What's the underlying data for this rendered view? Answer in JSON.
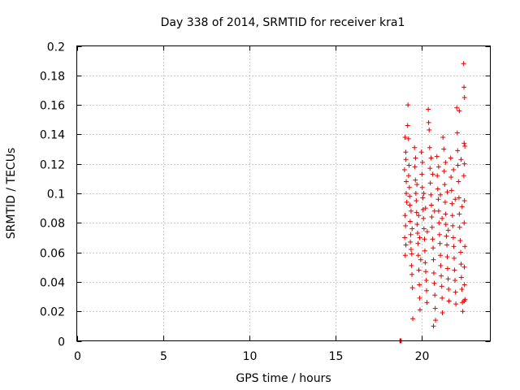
{
  "chart_data": {
    "type": "scatter",
    "title": "Day 338 of 2014, SRMTID for receiver kra1",
    "xlabel": "GPS time / hours",
    "ylabel": "SRMTID / TECUs",
    "xlim": [
      0,
      24
    ],
    "ylim": [
      0,
      0.2
    ],
    "x_ticks": [
      0,
      5,
      10,
      15,
      20
    ],
    "y_ticks": [
      0,
      0.02,
      0.04,
      0.06,
      0.08,
      0.1,
      0.12,
      0.14,
      0.16,
      0.18,
      0.2
    ],
    "grid": true,
    "marker": "plus",
    "color": "#e00000",
    "series": [
      {
        "name": "SRMTID",
        "points": [
          [
            18.75,
            0.0
          ],
          [
            18.78,
            0.0
          ],
          [
            18.8,
            0.0
          ],
          [
            18.83,
            0.0
          ],
          [
            19.05,
            0.138
          ],
          [
            19.1,
            0.123
          ],
          [
            19.12,
            0.108
          ],
          [
            19.15,
            0.094
          ],
          [
            19.05,
            0.085
          ],
          [
            19.08,
            0.078
          ],
          [
            19.03,
            0.07
          ],
          [
            19.1,
            0.065
          ],
          [
            19.06,
            0.058
          ],
          [
            19.12,
            0.1
          ],
          [
            19.02,
            0.116
          ],
          [
            19.09,
            0.128
          ],
          [
            19.2,
            0.146
          ],
          [
            19.22,
            0.16
          ],
          [
            19.25,
            0.137
          ],
          [
            19.28,
            0.119
          ],
          [
            19.3,
            0.104
          ],
          [
            19.33,
            0.092
          ],
          [
            19.35,
            0.081
          ],
          [
            19.38,
            0.072
          ],
          [
            19.4,
            0.062
          ],
          [
            19.42,
            0.051
          ],
          [
            19.45,
            0.045
          ],
          [
            19.48,
            0.036
          ],
          [
            19.5,
            0.015
          ],
          [
            19.26,
            0.112
          ],
          [
            19.32,
            0.098
          ],
          [
            19.4,
            0.088
          ],
          [
            19.46,
            0.076
          ],
          [
            19.36,
            0.067
          ],
          [
            19.44,
            0.059
          ],
          [
            19.6,
            0.131
          ],
          [
            19.62,
            0.118
          ],
          [
            19.65,
            0.109
          ],
          [
            19.68,
            0.1
          ],
          [
            19.7,
            0.095
          ],
          [
            19.72,
            0.087
          ],
          [
            19.75,
            0.079
          ],
          [
            19.78,
            0.073
          ],
          [
            19.8,
            0.066
          ],
          [
            19.82,
            0.058
          ],
          [
            19.85,
            0.048
          ],
          [
            19.88,
            0.038
          ],
          [
            19.9,
            0.029
          ],
          [
            19.92,
            0.021
          ],
          [
            19.66,
            0.124
          ],
          [
            19.74,
            0.106
          ],
          [
            19.84,
            0.085
          ],
          [
            19.9,
            0.07
          ],
          [
            19.96,
            0.055
          ],
          [
            20.0,
            0.128
          ],
          [
            20.03,
            0.113
          ],
          [
            20.05,
            0.104
          ],
          [
            20.08,
            0.097
          ],
          [
            20.1,
            0.089
          ],
          [
            20.12,
            0.083
          ],
          [
            20.15,
            0.076
          ],
          [
            20.18,
            0.069
          ],
          [
            20.2,
            0.061
          ],
          [
            20.22,
            0.053
          ],
          [
            20.25,
            0.047
          ],
          [
            20.28,
            0.041
          ],
          [
            20.3,
            0.034
          ],
          [
            20.32,
            0.026
          ],
          [
            20.06,
            0.121
          ],
          [
            20.14,
            0.1
          ],
          [
            20.24,
            0.09
          ],
          [
            20.34,
            0.074
          ],
          [
            20.4,
            0.157
          ],
          [
            20.42,
            0.148
          ],
          [
            20.45,
            0.143
          ],
          [
            20.48,
            0.131
          ],
          [
            20.5,
            0.117
          ],
          [
            20.52,
            0.107
          ],
          [
            20.55,
            0.099
          ],
          [
            20.58,
            0.092
          ],
          [
            20.6,
            0.084
          ],
          [
            20.62,
            0.077
          ],
          [
            20.65,
            0.069
          ],
          [
            20.68,
            0.063
          ],
          [
            20.7,
            0.055
          ],
          [
            20.72,
            0.046
          ],
          [
            20.75,
            0.039
          ],
          [
            20.78,
            0.031
          ],
          [
            20.8,
            0.022
          ],
          [
            20.82,
            0.014
          ],
          [
            20.7,
            0.01
          ],
          [
            20.56,
            0.124
          ],
          [
            20.66,
            0.113
          ],
          [
            20.76,
            0.088
          ],
          [
            20.9,
            0.125
          ],
          [
            20.92,
            0.112
          ],
          [
            20.95,
            0.103
          ],
          [
            20.98,
            0.096
          ],
          [
            21.0,
            0.088
          ],
          [
            21.02,
            0.08
          ],
          [
            21.05,
            0.072
          ],
          [
            21.08,
            0.066
          ],
          [
            21.1,
            0.058
          ],
          [
            21.12,
            0.051
          ],
          [
            21.15,
            0.044
          ],
          [
            21.18,
            0.037
          ],
          [
            21.2,
            0.029
          ],
          [
            21.22,
            0.019
          ],
          [
            21.25,
            0.138
          ],
          [
            21.0,
            0.118
          ],
          [
            21.1,
            0.099
          ],
          [
            21.2,
            0.083
          ],
          [
            21.3,
            0.13
          ],
          [
            21.32,
            0.115
          ],
          [
            21.35,
            0.106
          ],
          [
            21.38,
            0.094
          ],
          [
            21.4,
            0.086
          ],
          [
            21.42,
            0.079
          ],
          [
            21.45,
            0.071
          ],
          [
            21.48,
            0.065
          ],
          [
            21.5,
            0.057
          ],
          [
            21.52,
            0.049
          ],
          [
            21.55,
            0.042
          ],
          [
            21.58,
            0.035
          ],
          [
            21.6,
            0.027
          ],
          [
            21.4,
            0.121
          ],
          [
            21.5,
            0.101
          ],
          [
            21.56,
            0.075
          ],
          [
            21.7,
            0.124
          ],
          [
            21.72,
            0.111
          ],
          [
            21.75,
            0.102
          ],
          [
            21.78,
            0.093
          ],
          [
            21.8,
            0.085
          ],
          [
            21.82,
            0.078
          ],
          [
            21.85,
            0.07
          ],
          [
            21.88,
            0.064
          ],
          [
            21.9,
            0.056
          ],
          [
            21.92,
            0.048
          ],
          [
            21.95,
            0.041
          ],
          [
            21.98,
            0.033
          ],
          [
            22.0,
            0.025
          ],
          [
            21.86,
            0.116
          ],
          [
            21.96,
            0.096
          ],
          [
            22.05,
            0.158
          ],
          [
            22.08,
            0.141
          ],
          [
            22.1,
            0.129
          ],
          [
            22.12,
            0.119
          ],
          [
            22.15,
            0.108
          ],
          [
            22.18,
            0.097
          ],
          [
            22.2,
            0.086
          ],
          [
            22.22,
            0.077
          ],
          [
            22.25,
            0.068
          ],
          [
            22.28,
            0.06
          ],
          [
            22.3,
            0.052
          ],
          [
            22.32,
            0.043
          ],
          [
            22.35,
            0.035
          ],
          [
            22.38,
            0.026
          ],
          [
            22.4,
            0.02
          ],
          [
            22.2,
            0.156
          ],
          [
            22.3,
            0.123
          ],
          [
            22.36,
            0.091
          ],
          [
            22.45,
            0.188
          ],
          [
            22.47,
            0.172
          ],
          [
            22.5,
            0.165
          ],
          [
            22.48,
            0.134
          ],
          [
            22.52,
            0.132
          ],
          [
            22.5,
            0.12
          ],
          [
            22.46,
            0.112
          ],
          [
            22.5,
            0.095
          ],
          [
            22.48,
            0.08
          ],
          [
            22.52,
            0.064
          ],
          [
            22.49,
            0.05
          ],
          [
            22.5,
            0.038
          ],
          [
            22.47,
            0.027
          ],
          [
            22.53,
            0.028
          ]
        ]
      }
    ]
  }
}
